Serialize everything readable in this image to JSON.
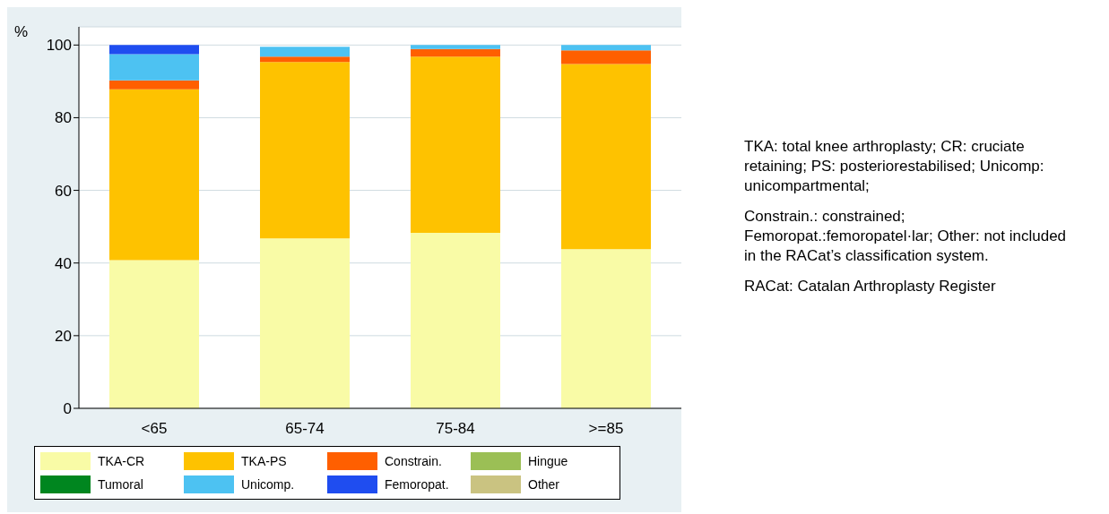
{
  "chart_data": {
    "type": "bar",
    "stacked": true,
    "ylabel": "%",
    "categories": [
      "<65",
      "65-74",
      "75-84",
      ">=85"
    ],
    "series": [
      {
        "name": "TKA-CR",
        "color": "#f9fba6",
        "values": [
          40.8,
          46.8,
          48.3,
          43.8
        ]
      },
      {
        "name": "TKA-PS",
        "color": "#fec200",
        "values": [
          47,
          48.5,
          48.5,
          51
        ]
      },
      {
        "name": "Constrain.",
        "color": "#ff5f00",
        "values": [
          2.5,
          1.5,
          2.1,
          3.7
        ]
      },
      {
        "name": "Hingue",
        "color": "#9bbf55",
        "values": [
          0,
          0,
          0,
          0
        ]
      },
      {
        "name": "Tumoral",
        "color": "#00861f",
        "values": [
          0,
          0,
          0,
          0
        ]
      },
      {
        "name": "Unicomp.",
        "color": "#4dc2f2",
        "values": [
          7.2,
          2.7,
          1.1,
          1.5
        ]
      },
      {
        "name": "Femoropat.",
        "color": "#1f4df0",
        "values": [
          2.5,
          0,
          0,
          0
        ]
      },
      {
        "name": "Other",
        "color": "#cac381",
        "values": [
          0,
          0,
          0,
          0
        ]
      }
    ],
    "ylim": [
      0,
      105
    ],
    "yticks": [
      0,
      20,
      40,
      60,
      80,
      100
    ],
    "grid": "y",
    "legend": "bottom",
    "annotations": [
      "TKA: total knee arthroplasty; CR: cruciate retaining; PS: posteriorestabilised; Unicomp: unicompartmental;",
      "Constrain.: constrained; Femoropat.:femoropatel·lar; Other: not included in the RACat’s classification system.",
      "RACat: Catalan Arthroplasty Register"
    ]
  }
}
